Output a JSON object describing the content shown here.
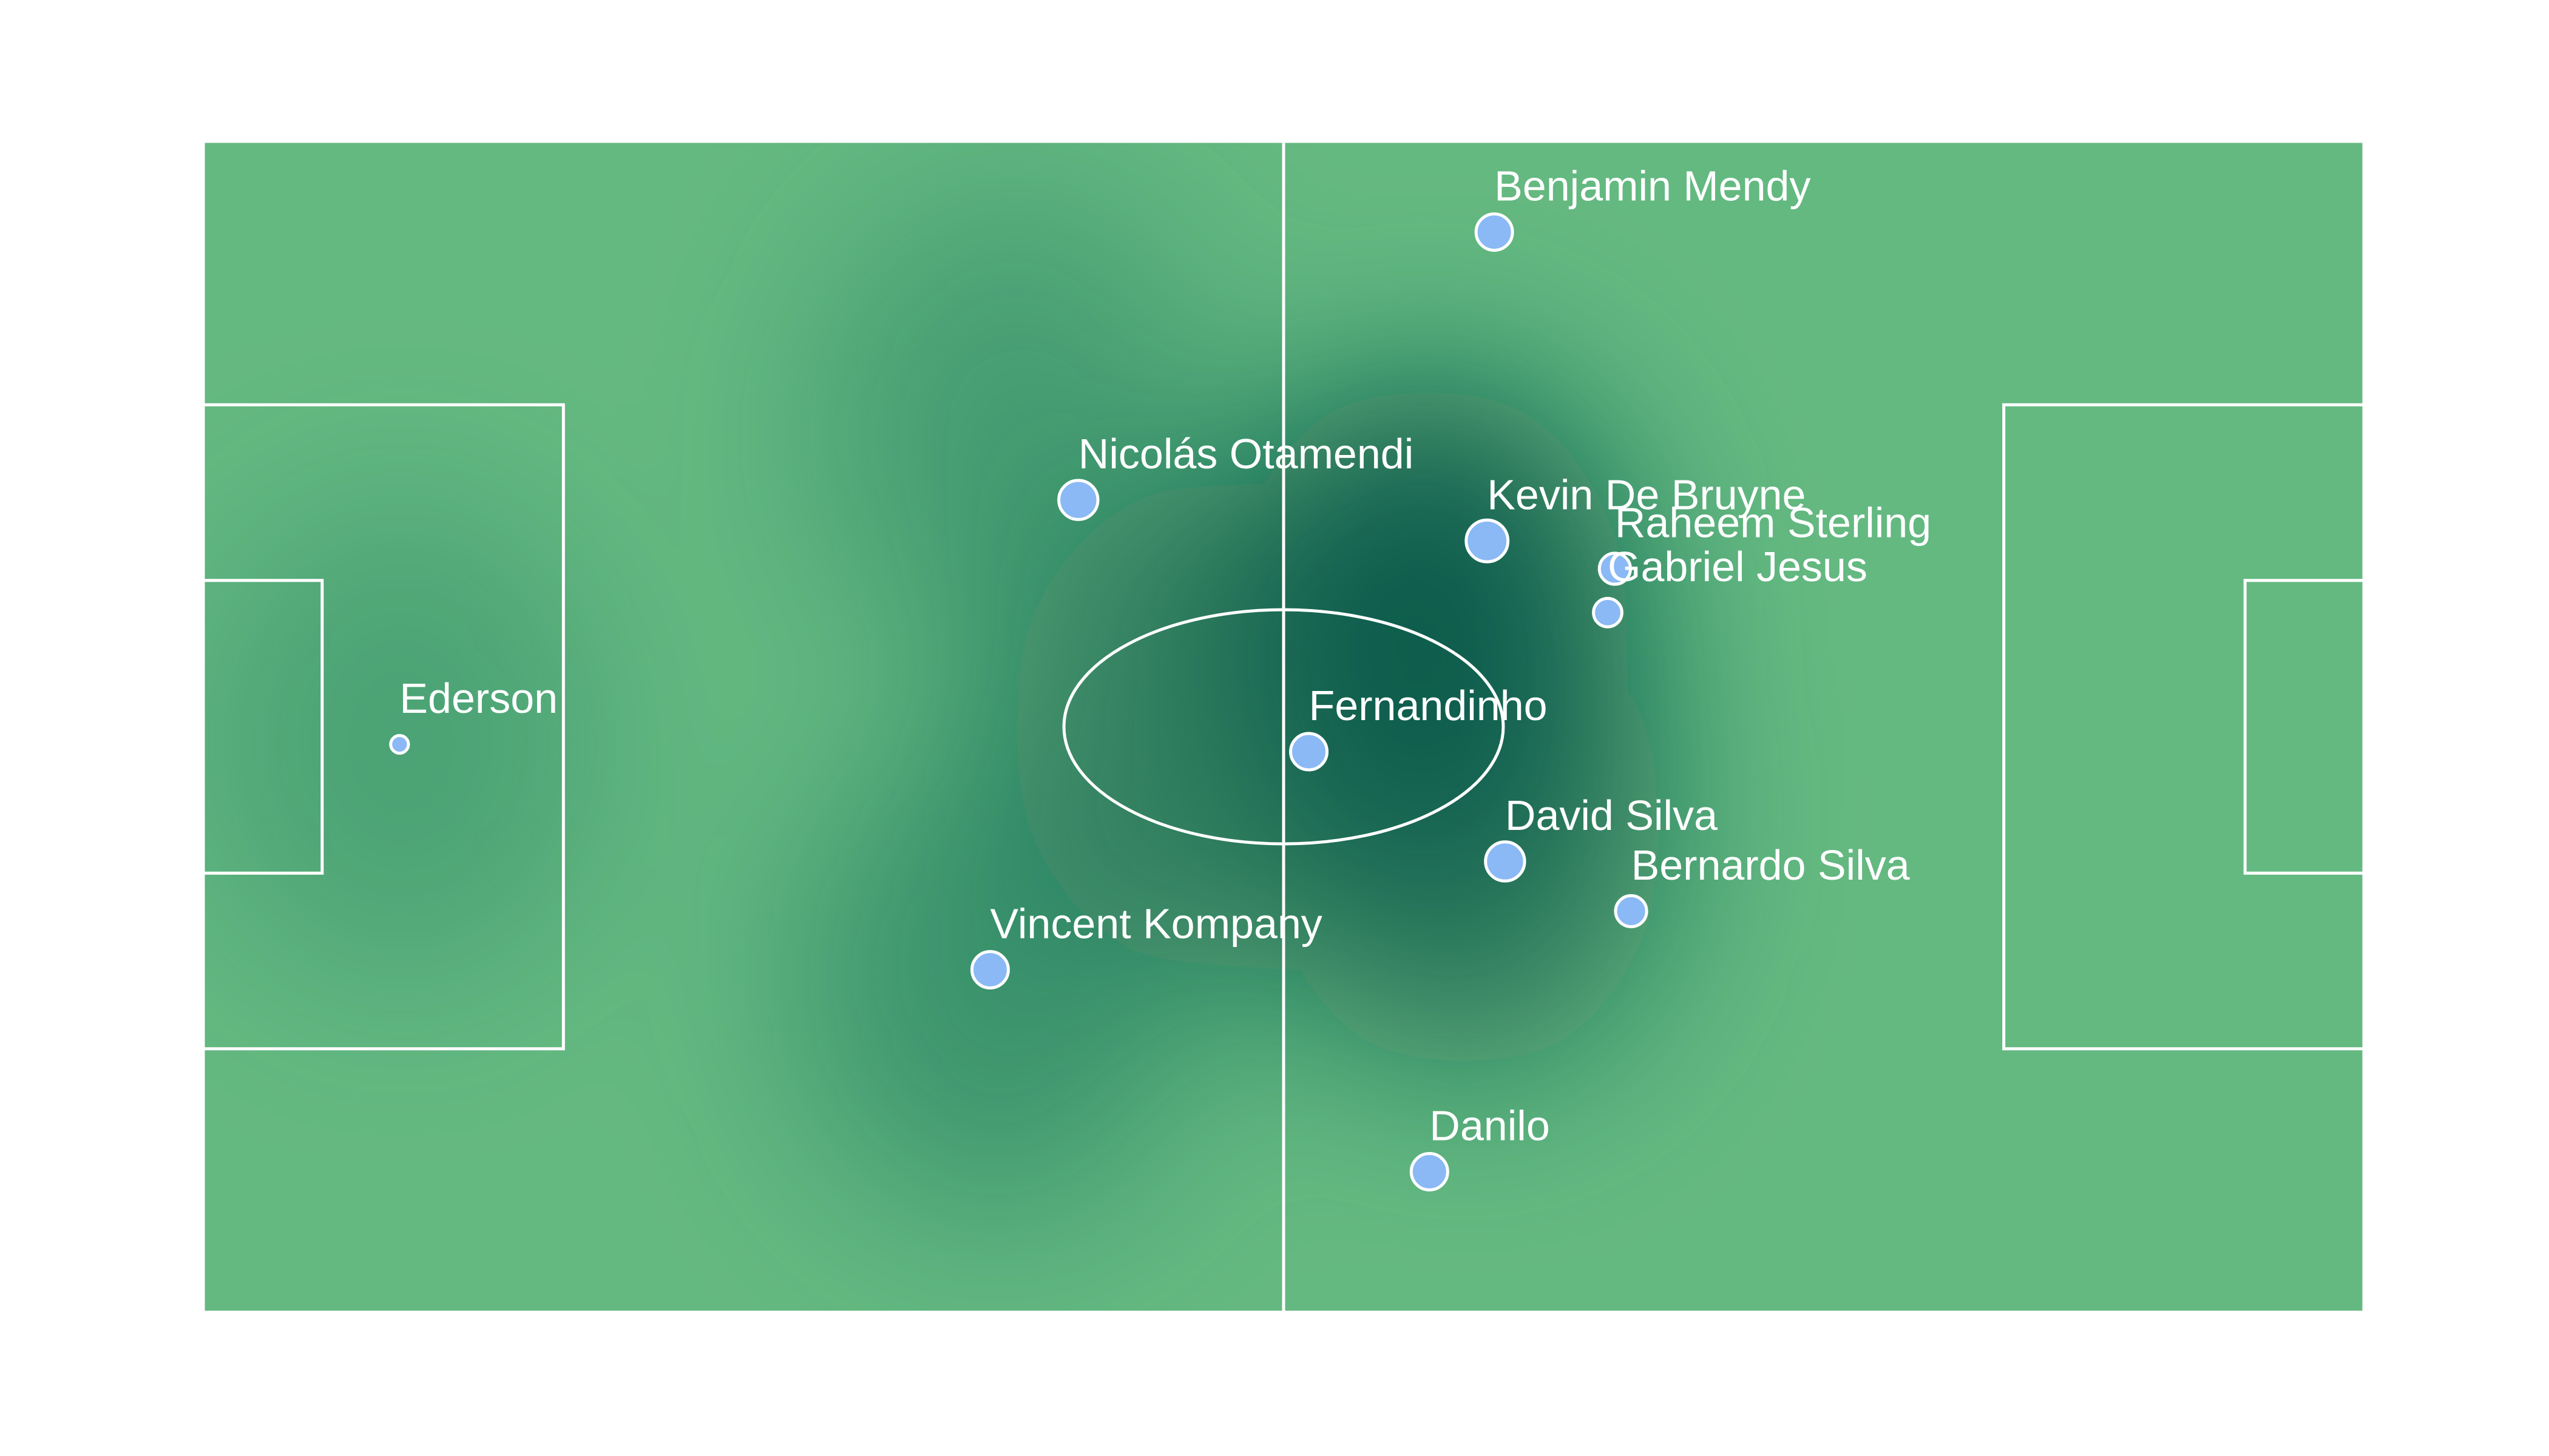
{
  "chart_data": {
    "type": "scatter",
    "title": "",
    "xlabel": "",
    "ylabel": "",
    "xlim": [
      0,
      120
    ],
    "ylim": [
      0,
      80
    ],
    "grid": false,
    "legend": "none",
    "pitch_color": "#64b981",
    "heat_color": "#0d5c4d",
    "dot_color": "#8ab9f5",
    "heat_spots": [
      {
        "x": 68,
        "y": 47,
        "weight": 1.0
      },
      {
        "x": 70,
        "y": 33,
        "weight": 0.7
      },
      {
        "x": 56,
        "y": 40,
        "weight": 0.55
      },
      {
        "x": 44,
        "y": 23,
        "weight": 0.4
      },
      {
        "x": 45,
        "y": 60,
        "weight": 0.3
      },
      {
        "x": 11,
        "y": 39,
        "weight": 0.25
      }
    ],
    "points": [
      {
        "name": "Benjamin Mendy",
        "x": 71.7,
        "y": 73.8,
        "size": 1.0
      },
      {
        "name": "Nicolás Otamendi",
        "x": 48.6,
        "y": 55.5,
        "size": 1.1
      },
      {
        "name": "Kevin De Bruyne",
        "x": 71.3,
        "y": 52.7,
        "size": 1.2
      },
      {
        "name": "Raheem Sterling",
        "x": 78.4,
        "y": 50.8,
        "size": 0.8
      },
      {
        "name": "Gabriel Jesus",
        "x": 78.0,
        "y": 47.8,
        "size": 0.7
      },
      {
        "name": "Ederson",
        "x": 10.9,
        "y": 38.8,
        "size": 0.3
      },
      {
        "name": "Fernandinho",
        "x": 61.4,
        "y": 38.3,
        "size": 1.0
      },
      {
        "name": "David Silva",
        "x": 72.3,
        "y": 30.8,
        "size": 1.1
      },
      {
        "name": "Bernardo Silva",
        "x": 79.3,
        "y": 27.4,
        "size": 0.8
      },
      {
        "name": "Vincent Kompany",
        "x": 43.7,
        "y": 23.4,
        "size": 1.0
      },
      {
        "name": "Danilo",
        "x": 68.1,
        "y": 9.6,
        "size": 1.0
      }
    ]
  }
}
